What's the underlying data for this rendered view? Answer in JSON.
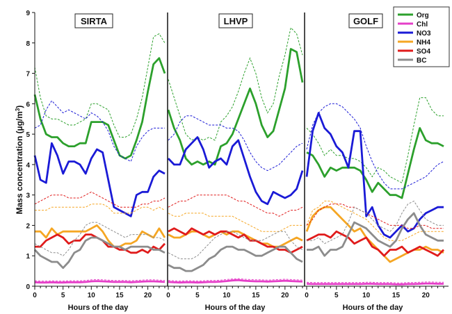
{
  "chart_data": {
    "type": "line",
    "ylabel": "Mass concentration (µg/m³)",
    "ylabel_main": "Mass concentration (µg/m",
    "ylabel_sup": "3",
    "ylabel_end": ")",
    "xlabel": "Hours of the day",
    "ylim": [
      0,
      9
    ],
    "yticks": [
      "0",
      "1",
      "2",
      "3",
      "4",
      "5",
      "6",
      "7",
      "8",
      "9"
    ],
    "xlim": [
      0,
      23
    ],
    "xticks": [
      "0",
      "5",
      "10",
      "15",
      "20"
    ],
    "legend_position": "top-right",
    "series_styles": [
      {
        "name": "Org",
        "color": "#2ca02c"
      },
      {
        "name": "Chl",
        "color": "#e53fc8"
      },
      {
        "name": "NO3",
        "color": "#1a1ad6"
      },
      {
        "name": "NH4",
        "color": "#f5a623"
      },
      {
        "name": "SO4",
        "color": "#e01b1b"
      },
      {
        "name": "BC",
        "color": "#8c8c8c"
      }
    ],
    "panels": [
      {
        "title": "SIRTA",
        "series": [
          {
            "name": "Org",
            "mean": [
              6.3,
              5.5,
              5.0,
              4.9,
              4.9,
              4.7,
              4.6,
              4.6,
              4.7,
              4.7,
              5.4,
              5.4,
              5.4,
              5.3,
              4.8,
              4.3,
              4.2,
              4.3,
              4.8,
              5.4,
              6.4,
              7.3,
              7.5,
              7.0
            ],
            "upper": [
              7.2,
              6.2,
              5.6,
              5.5,
              5.5,
              5.4,
              5.3,
              5.3,
              5.4,
              5.5,
              6.0,
              6.0,
              5.9,
              5.8,
              5.3,
              4.9,
              4.9,
              5.0,
              5.5,
              6.2,
              7.2,
              8.2,
              8.3,
              8.0
            ]
          },
          {
            "name": "Chl",
            "mean": [
              0.13,
              0.12,
              0.12,
              0.13,
              0.12,
              0.12,
              0.13,
              0.13,
              0.13,
              0.14,
              0.16,
              0.17,
              0.16,
              0.15,
              0.14,
              0.14,
              0.14,
              0.13,
              0.14,
              0.15,
              0.16,
              0.16,
              0.15,
              0.14
            ],
            "upper": [
              0.18,
              0.17,
              0.17,
              0.18,
              0.17,
              0.17,
              0.18,
              0.18,
              0.18,
              0.19,
              0.21,
              0.22,
              0.21,
              0.2,
              0.19,
              0.19,
              0.19,
              0.18,
              0.19,
              0.2,
              0.21,
              0.21,
              0.2,
              0.19
            ]
          },
          {
            "name": "NO3",
            "mean": [
              4.3,
              3.5,
              3.4,
              4.7,
              4.3,
              3.7,
              4.1,
              4.1,
              4.0,
              3.7,
              4.2,
              4.5,
              4.4,
              3.5,
              2.6,
              2.5,
              2.4,
              2.3,
              3.0,
              3.1,
              3.1,
              3.6,
              3.8,
              3.7
            ],
            "upper": [
              5.2,
              5.3,
              5.8,
              6.1,
              5.9,
              5.7,
              5.8,
              5.7,
              5.6,
              5.5,
              5.7,
              5.6,
              5.4,
              5.1,
              4.6,
              4.3,
              4.2,
              4.1,
              4.6,
              4.9,
              5.1,
              5.2,
              5.2,
              5.2
            ]
          },
          {
            "name": "NH4",
            "mean": [
              1.8,
              1.8,
              1.6,
              1.9,
              1.7,
              1.8,
              1.8,
              1.8,
              1.8,
              1.8,
              1.9,
              2.0,
              1.8,
              1.5,
              1.3,
              1.3,
              1.4,
              1.4,
              1.5,
              1.8,
              1.7,
              1.6,
              1.9,
              1.6
            ],
            "upper": [
              2.5,
              2.5,
              2.5,
              2.6,
              2.6,
              2.6,
              2.6,
              2.6,
              2.6,
              2.6,
              2.7,
              2.7,
              2.7,
              2.6,
              2.4,
              2.4,
              2.4,
              2.4,
              2.5,
              2.6,
              2.6,
              2.5,
              2.6,
              2.5
            ]
          },
          {
            "name": "SO4",
            "mean": [
              1.3,
              1.3,
              1.5,
              1.6,
              1.7,
              1.6,
              1.4,
              1.5,
              1.5,
              1.7,
              1.7,
              1.6,
              1.5,
              1.3,
              1.3,
              1.2,
              1.2,
              1.1,
              1.1,
              1.2,
              1.1,
              1.3,
              1.2,
              1.4
            ],
            "upper": [
              2.7,
              2.8,
              2.9,
              3.0,
              3.0,
              3.0,
              2.9,
              2.9,
              2.9,
              3.0,
              3.1,
              3.0,
              2.9,
              2.8,
              2.7,
              2.6,
              2.6,
              2.6,
              2.6,
              2.7,
              2.7,
              2.8,
              2.8,
              2.9
            ]
          },
          {
            "name": "BC",
            "mean": [
              1.2,
              1.0,
              0.9,
              0.8,
              0.8,
              0.6,
              0.8,
              1.1,
              1.2,
              1.5,
              1.6,
              1.6,
              1.5,
              1.4,
              1.3,
              1.3,
              1.2,
              1.3,
              1.3,
              1.3,
              1.3,
              1.2,
              1.2,
              1.1
            ],
            "upper": [
              1.4,
              1.3,
              1.2,
              1.1,
              1.1,
              1.0,
              1.2,
              1.5,
              1.7,
              2.0,
              2.1,
              2.1,
              2.0,
              1.9,
              1.8,
              1.7,
              1.6,
              1.7,
              1.7,
              1.7,
              1.7,
              1.6,
              1.6,
              1.5
            ]
          }
        ]
      },
      {
        "title": "LHVP",
        "series": [
          {
            "name": "Org",
            "mean": [
              5.8,
              5.2,
              4.8,
              4.2,
              4.0,
              4.1,
              4.0,
              4.1,
              4.0,
              4.6,
              4.7,
              5.0,
              5.5,
              6.0,
              6.5,
              6.0,
              5.3,
              4.9,
              5.1,
              5.8,
              6.5,
              7.8,
              7.7,
              6.7
            ],
            "upper": [
              6.8,
              6.2,
              5.6,
              5.0,
              4.8,
              4.9,
              4.8,
              4.9,
              4.8,
              5.4,
              5.6,
              5.9,
              6.4,
              7.0,
              7.5,
              7.0,
              6.2,
              5.7,
              6.0,
              6.9,
              7.6,
              8.5,
              8.3,
              7.6
            ]
          },
          {
            "name": "Chl",
            "mean": [
              0.14,
              0.13,
              0.12,
              0.13,
              0.13,
              0.12,
              0.13,
              0.14,
              0.14,
              0.15,
              0.17,
              0.19,
              0.2,
              0.18,
              0.17,
              0.16,
              0.16,
              0.15,
              0.16,
              0.17,
              0.18,
              0.17,
              0.16,
              0.15
            ],
            "upper": [
              0.19,
              0.18,
              0.17,
              0.18,
              0.18,
              0.17,
              0.18,
              0.19,
              0.19,
              0.2,
              0.22,
              0.24,
              0.25,
              0.23,
              0.22,
              0.21,
              0.21,
              0.2,
              0.21,
              0.22,
              0.23,
              0.22,
              0.21,
              0.2
            ]
          },
          {
            "name": "NO3",
            "mean": [
              4.2,
              4.0,
              4.0,
              4.5,
              4.7,
              4.9,
              4.5,
              3.9,
              4.1,
              4.2,
              4.0,
              4.6,
              4.8,
              4.2,
              3.6,
              3.1,
              2.8,
              2.7,
              3.1,
              3.0,
              2.9,
              3.0,
              3.2,
              3.8
            ],
            "upper": [
              4.8,
              5.0,
              5.4,
              5.6,
              5.6,
              5.5,
              5.4,
              5.3,
              5.3,
              5.3,
              5.2,
              5.2,
              5.1,
              4.8,
              4.4,
              4.1,
              3.9,
              3.8,
              3.9,
              4.0,
              4.2,
              4.4,
              4.6,
              4.7
            ]
          },
          {
            "name": "NH4",
            "mean": [
              1.7,
              1.6,
              1.6,
              1.7,
              1.8,
              1.8,
              1.7,
              1.6,
              1.7,
              1.8,
              1.7,
              1.8,
              1.8,
              1.7,
              1.6,
              1.5,
              1.4,
              1.4,
              1.3,
              1.3,
              1.4,
              1.5,
              1.6,
              1.5
            ],
            "upper": [
              2.4,
              2.3,
              2.3,
              2.4,
              2.4,
              2.4,
              2.4,
              2.3,
              2.3,
              2.3,
              2.3,
              2.3,
              2.2,
              2.1,
              2.0,
              1.9,
              1.8,
              1.8,
              1.8,
              1.8,
              1.9,
              2.0,
              2.0,
              2.0
            ]
          },
          {
            "name": "SO4",
            "mean": [
              1.8,
              1.9,
              1.8,
              1.7,
              1.9,
              1.8,
              1.7,
              1.8,
              1.7,
              1.8,
              1.8,
              1.7,
              1.6,
              1.7,
              1.5,
              1.5,
              1.4,
              1.3,
              1.3,
              1.2,
              1.2,
              1.1,
              1.2,
              1.3
            ],
            "upper": [
              2.6,
              2.7,
              2.8,
              2.8,
              2.9,
              3.0,
              3.0,
              3.0,
              3.0,
              3.0,
              3.0,
              2.9,
              2.8,
              2.8,
              2.7,
              2.6,
              2.5,
              2.4,
              2.4,
              2.3,
              2.4,
              2.5,
              2.5,
              2.6
            ]
          },
          {
            "name": "BC",
            "mean": [
              0.7,
              0.6,
              0.6,
              0.5,
              0.5,
              0.6,
              0.7,
              0.9,
              1.0,
              1.2,
              1.3,
              1.3,
              1.2,
              1.2,
              1.1,
              1.0,
              1.0,
              1.1,
              1.2,
              1.3,
              1.3,
              1.1,
              0.9,
              0.8
            ],
            "upper": [
              1.1,
              1.0,
              0.9,
              0.9,
              0.9,
              1.0,
              1.2,
              1.4,
              1.6,
              1.7,
              1.8,
              1.8,
              1.7,
              1.6,
              1.5,
              1.5,
              1.5,
              1.6,
              1.7,
              1.8,
              1.8,
              1.5,
              1.3,
              1.2
            ]
          }
        ]
      },
      {
        "title": "GOLF",
        "series": [
          {
            "name": "Org",
            "mean": [
              4.4,
              4.3,
              4.0,
              3.6,
              3.9,
              3.8,
              3.9,
              3.9,
              3.9,
              3.8,
              3.5,
              3.1,
              3.4,
              3.2,
              3.0,
              3.0,
              2.9,
              3.7,
              4.5,
              5.2,
              4.8,
              4.7,
              4.7,
              4.6
            ],
            "upper": [
              5.2,
              5.0,
              4.7,
              4.3,
              4.5,
              4.3,
              4.3,
              4.2,
              4.2,
              4.1,
              3.9,
              3.6,
              3.9,
              3.8,
              3.6,
              3.5,
              3.4,
              4.3,
              5.3,
              6.2,
              6.2,
              5.8,
              5.6,
              5.6
            ]
          },
          {
            "name": "Chl",
            "mean": [
              0.08,
              0.07,
              0.07,
              0.07,
              0.07,
              0.07,
              0.07,
              0.07,
              0.07,
              0.07,
              0.08,
              0.08,
              0.07,
              0.07,
              0.07,
              0.06,
              0.06,
              0.07,
              0.07,
              0.08,
              0.09,
              0.09,
              0.08,
              0.08
            ],
            "upper": [
              0.13,
              0.12,
              0.12,
              0.12,
              0.12,
              0.12,
              0.12,
              0.12,
              0.12,
              0.12,
              0.13,
              0.13,
              0.12,
              0.12,
              0.12,
              0.11,
              0.11,
              0.12,
              0.12,
              0.13,
              0.14,
              0.14,
              0.13,
              0.13
            ]
          },
          {
            "name": "NO3",
            "mean": [
              3.6,
              5.1,
              5.7,
              5.2,
              5.0,
              4.6,
              4.4,
              3.9,
              5.1,
              5.1,
              2.3,
              2.6,
              2.0,
              1.7,
              1.6,
              1.8,
              2.0,
              1.8,
              1.9,
              2.2,
              2.4,
              2.5,
              2.6,
              2.6
            ],
            "upper": [
              4.5,
              5.3,
              5.7,
              5.9,
              6.0,
              6.0,
              5.9,
              5.7,
              5.5,
              5.2,
              4.6,
              4.1,
              3.7,
              3.4,
              3.2,
              3.2,
              3.2,
              3.3,
              3.4,
              3.5,
              3.6,
              3.8,
              4.0,
              4.1
            ]
          },
          {
            "name": "NH4",
            "mean": [
              1.8,
              2.3,
              2.5,
              2.6,
              2.6,
              2.4,
              2.2,
              2.0,
              1.8,
              1.9,
              1.6,
              1.4,
              1.2,
              1.0,
              0.8,
              0.9,
              1.0,
              1.1,
              1.2,
              1.2,
              1.3,
              1.2,
              1.2,
              1.1
            ],
            "upper": [
              2.0,
              2.5,
              2.6,
              2.8,
              2.8,
              2.7,
              2.6,
              2.5,
              2.4,
              2.3,
              2.2,
              2.0,
              1.8,
              1.6,
              1.5,
              1.5,
              1.5,
              1.6,
              1.7,
              1.8,
              1.8,
              1.8,
              1.8,
              1.8
            ]
          },
          {
            "name": "SO4",
            "mean": [
              1.5,
              1.6,
              1.7,
              1.7,
              1.6,
              1.8,
              1.7,
              1.6,
              1.4,
              1.5,
              1.6,
              1.3,
              1.2,
              1.0,
              1.2,
              1.2,
              1.3,
              1.1,
              1.2,
              1.3,
              1.2,
              1.1,
              1.0,
              1.2
            ],
            "upper": [
              2.0,
              2.2,
              2.5,
              2.6,
              2.7,
              2.7,
              2.7,
              2.6,
              2.6,
              2.5,
              2.4,
              2.3,
              2.2,
              2.1,
              2.0,
              2.0,
              2.0,
              1.9,
              1.9,
              2.0,
              2.0,
              1.9,
              1.9,
              1.9
            ]
          },
          {
            "name": "BC",
            "mean": [
              1.2,
              1.2,
              1.3,
              1.0,
              1.2,
              1.2,
              1.3,
              1.7,
              2.1,
              2.0,
              1.9,
              1.7,
              1.5,
              1.4,
              1.3,
              1.5,
              1.9,
              2.2,
              2.4,
              2.0,
              1.7,
              1.6,
              1.5,
              1.5
            ],
            "upper": [
              1.5,
              1.5,
              1.6,
              1.4,
              1.5,
              1.6,
              1.7,
              2.1,
              2.6,
              2.5,
              2.4,
              2.2,
              2.0,
              1.9,
              1.8,
              2.0,
              2.4,
              2.7,
              2.8,
              2.5,
              2.2,
              2.1,
              2.0,
              2.0
            ]
          }
        ]
      }
    ]
  }
}
